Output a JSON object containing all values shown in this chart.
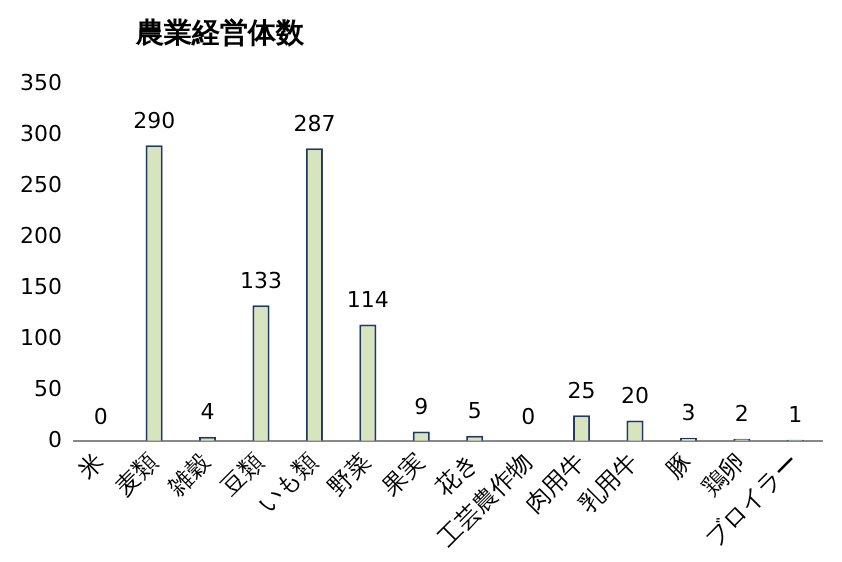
{
  "chart_data": {
    "type": "bar",
    "title": "農業経営体数",
    "categories": [
      "米",
      "麦類",
      "雑穀",
      "豆類",
      "いも類",
      "野菜",
      "果実",
      "花き",
      "工芸農作物",
      "肉用牛",
      "乳用牛",
      "豚",
      "鶏卵",
      "ブロイラー"
    ],
    "values": [
      0,
      290,
      4,
      133,
      287,
      114,
      9,
      5,
      0,
      25,
      20,
      3,
      2,
      1
    ],
    "color": "#d7e4bd",
    "ylim": [
      0,
      350
    ],
    "yticks": [
      0,
      50,
      100,
      150,
      200,
      250,
      300,
      350
    ],
    "grid": false,
    "legend": false,
    "data_labels": true
  }
}
